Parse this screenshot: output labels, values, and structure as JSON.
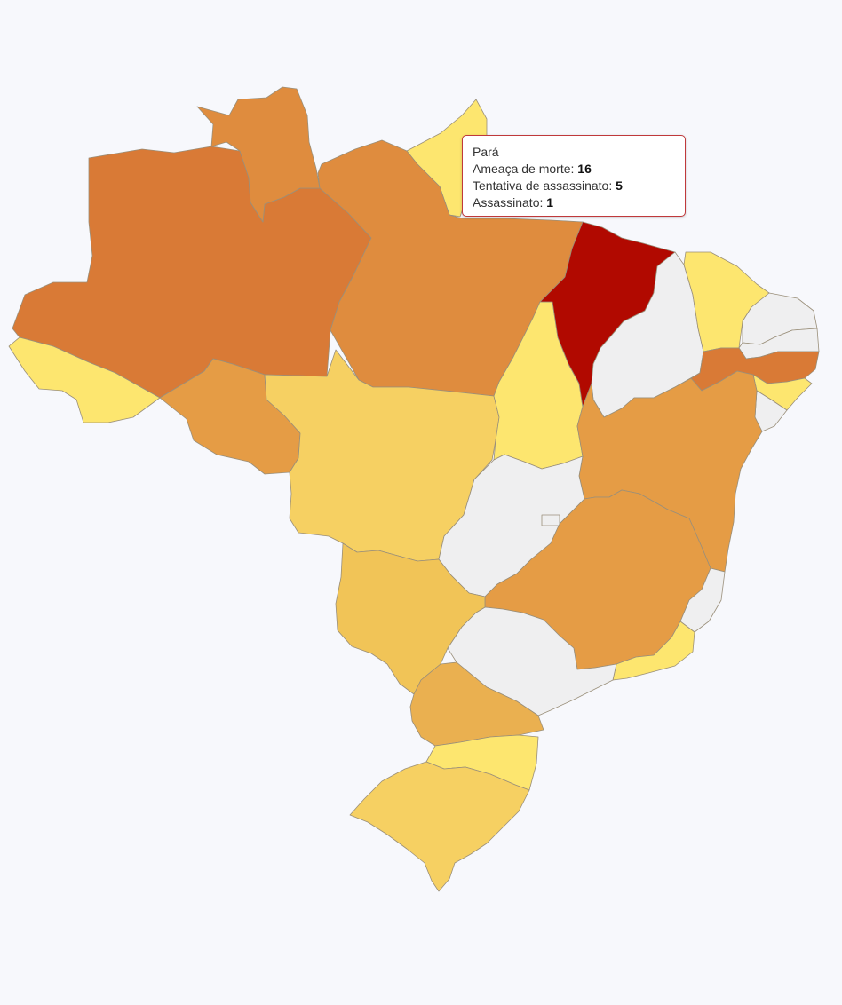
{
  "tooltip": {
    "state": "Pará",
    "rows": [
      {
        "label": "Ameaça de morte:",
        "value": "16"
      },
      {
        "label": "Tentativa de assassinato:",
        "value": "5"
      },
      {
        "label": "Assassinato:",
        "value": "1"
      }
    ]
  },
  "colors": {
    "background": "#f7f8fc",
    "tooltip_border": "#c0393b",
    "scale": [
      "#efeff0",
      "#fde66f",
      "#f6d062",
      "#eeb852",
      "#e59c45",
      "#df8c3e",
      "#d97a36",
      "#b10900"
    ],
    "no_data": "#efeff0",
    "highlight": "#b10900"
  },
  "states": [
    {
      "key": "AM",
      "fill": "#d97a36"
    },
    {
      "key": "RR",
      "fill": "#df8c3e"
    },
    {
      "key": "AP",
      "fill": "#fde66f"
    },
    {
      "key": "PA",
      "fill": "#df8c3e"
    },
    {
      "key": "AC",
      "fill": "#fde66f"
    },
    {
      "key": "RO",
      "fill": "#e59c45"
    },
    {
      "key": "MT",
      "fill": "#f6d062"
    },
    {
      "key": "TO",
      "fill": "#fde66f"
    },
    {
      "key": "MA",
      "fill": "#b10900"
    },
    {
      "key": "PI",
      "fill": "#efeff0"
    },
    {
      "key": "CE",
      "fill": "#fde66f"
    },
    {
      "key": "RN",
      "fill": "#efeff0"
    },
    {
      "key": "PB",
      "fill": "#efeff0"
    },
    {
      "key": "PE",
      "fill": "#d97a36"
    },
    {
      "key": "AL",
      "fill": "#fde66f"
    },
    {
      "key": "SE",
      "fill": "#efeff0"
    },
    {
      "key": "BA",
      "fill": "#e59c45"
    },
    {
      "key": "GO",
      "fill": "#efeff0"
    },
    {
      "key": "DF",
      "fill": "#efeff0"
    },
    {
      "key": "MG",
      "fill": "#e59c45"
    },
    {
      "key": "ES",
      "fill": "#efeff0"
    },
    {
      "key": "RJ",
      "fill": "#fde66f"
    },
    {
      "key": "SP",
      "fill": "#efeff0"
    },
    {
      "key": "MS",
      "fill": "#f1c457"
    },
    {
      "key": "PR",
      "fill": "#eab050"
    },
    {
      "key": "SC",
      "fill": "#fde66f"
    },
    {
      "key": "RS",
      "fill": "#f6d062"
    }
  ]
}
